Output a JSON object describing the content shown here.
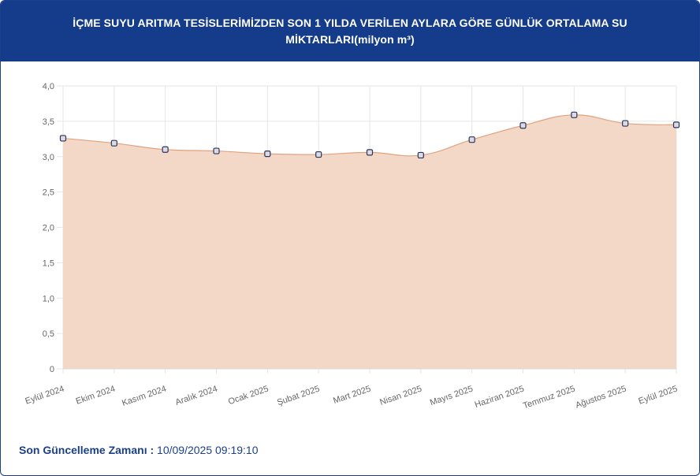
{
  "header": {
    "title": "İÇME SUYU ARITMA TESİSLERİMİZDEN SON 1 YILDA VERİLEN AYLARA GÖRE GÜNLÜK ORTALAMA SU MİKTARLARI(milyon m³)"
  },
  "footer": {
    "label": "Son Güncelleme Zamanı :",
    "value": "10/09/2025 09:19:10"
  },
  "colors": {
    "header_bg": "#143c8a",
    "area_fill": "#f3d8c8",
    "line": "#e0a27c",
    "point_fill": "#d9dbe6",
    "point_stroke": "#2e3557"
  },
  "chart_data": {
    "type": "area",
    "title": "",
    "xlabel": "",
    "ylabel": "",
    "ylim": [
      0,
      4
    ],
    "yticks": [
      "0",
      "0,5",
      "1,0",
      "1,5",
      "2,0",
      "2,5",
      "3,0",
      "3,5",
      "4,0"
    ],
    "grid": true,
    "categories": [
      "Eylül 2024",
      "Ekim 2024",
      "Kasım 2024",
      "Aralık 2024",
      "Ocak 2025",
      "Şubat 2025",
      "Mart 2025",
      "Nisan 2025",
      "Mayıs 2025",
      "Haziran 2025",
      "Temmuz 2025",
      "Ağustos 2025",
      "Eylül 2025"
    ],
    "series": [
      {
        "values": [
          3.26,
          3.19,
          3.1,
          3.08,
          3.04,
          3.03,
          3.06,
          3.02,
          3.24,
          3.44,
          3.59,
          3.47,
          3.45
        ]
      }
    ]
  }
}
